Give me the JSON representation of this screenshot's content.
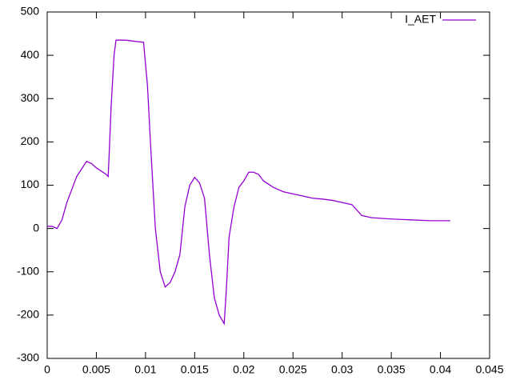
{
  "chart_data": {
    "type": "line",
    "x": [
      0,
      0.0005,
      0.001,
      0.0015,
      0.002,
      0.003,
      0.004,
      0.0045,
      0.005,
      0.006,
      0.0062,
      0.0063,
      0.0065,
      0.0068,
      0.007,
      0.008,
      0.009,
      0.0098,
      0.0102,
      0.0105,
      0.011,
      0.0115,
      0.012,
      0.0125,
      0.013,
      0.0135,
      0.014,
      0.0145,
      0.015,
      0.0155,
      0.016,
      0.0165,
      0.017,
      0.0175,
      0.018,
      0.0182,
      0.0185,
      0.019,
      0.0195,
      0.02,
      0.0205,
      0.021,
      0.0215,
      0.022,
      0.023,
      0.024,
      0.025,
      0.026,
      0.027,
      0.028,
      0.029,
      0.03,
      0.031,
      0.032,
      0.033,
      0.035,
      0.037,
      0.039,
      0.041
    ],
    "series": [
      {
        "name": "I_AET",
        "color": "#9400d3",
        "values": [
          5,
          5,
          0,
          20,
          60,
          120,
          155,
          150,
          140,
          125,
          120,
          170,
          280,
          400,
          435,
          435,
          432,
          430,
          330,
          200,
          0,
          -100,
          -135,
          -125,
          -100,
          -60,
          50,
          100,
          118,
          105,
          70,
          -60,
          -160,
          -200,
          -220,
          -150,
          -20,
          50,
          95,
          110,
          130,
          130,
          125,
          110,
          95,
          85,
          80,
          75,
          70,
          68,
          65,
          60,
          55,
          30,
          25,
          22,
          20,
          18,
          18
        ]
      }
    ],
    "xlim": [
      0,
      0.045
    ],
    "xticks": [
      0,
      0.005,
      0.01,
      0.015,
      0.02,
      0.025,
      0.03,
      0.035,
      0.04,
      0.045
    ],
    "ylim": [
      -300,
      500
    ],
    "yticks": [
      -300,
      -200,
      -100,
      0,
      100,
      200,
      300,
      400,
      500
    ],
    "legend": "top-right",
    "grid": false
  }
}
